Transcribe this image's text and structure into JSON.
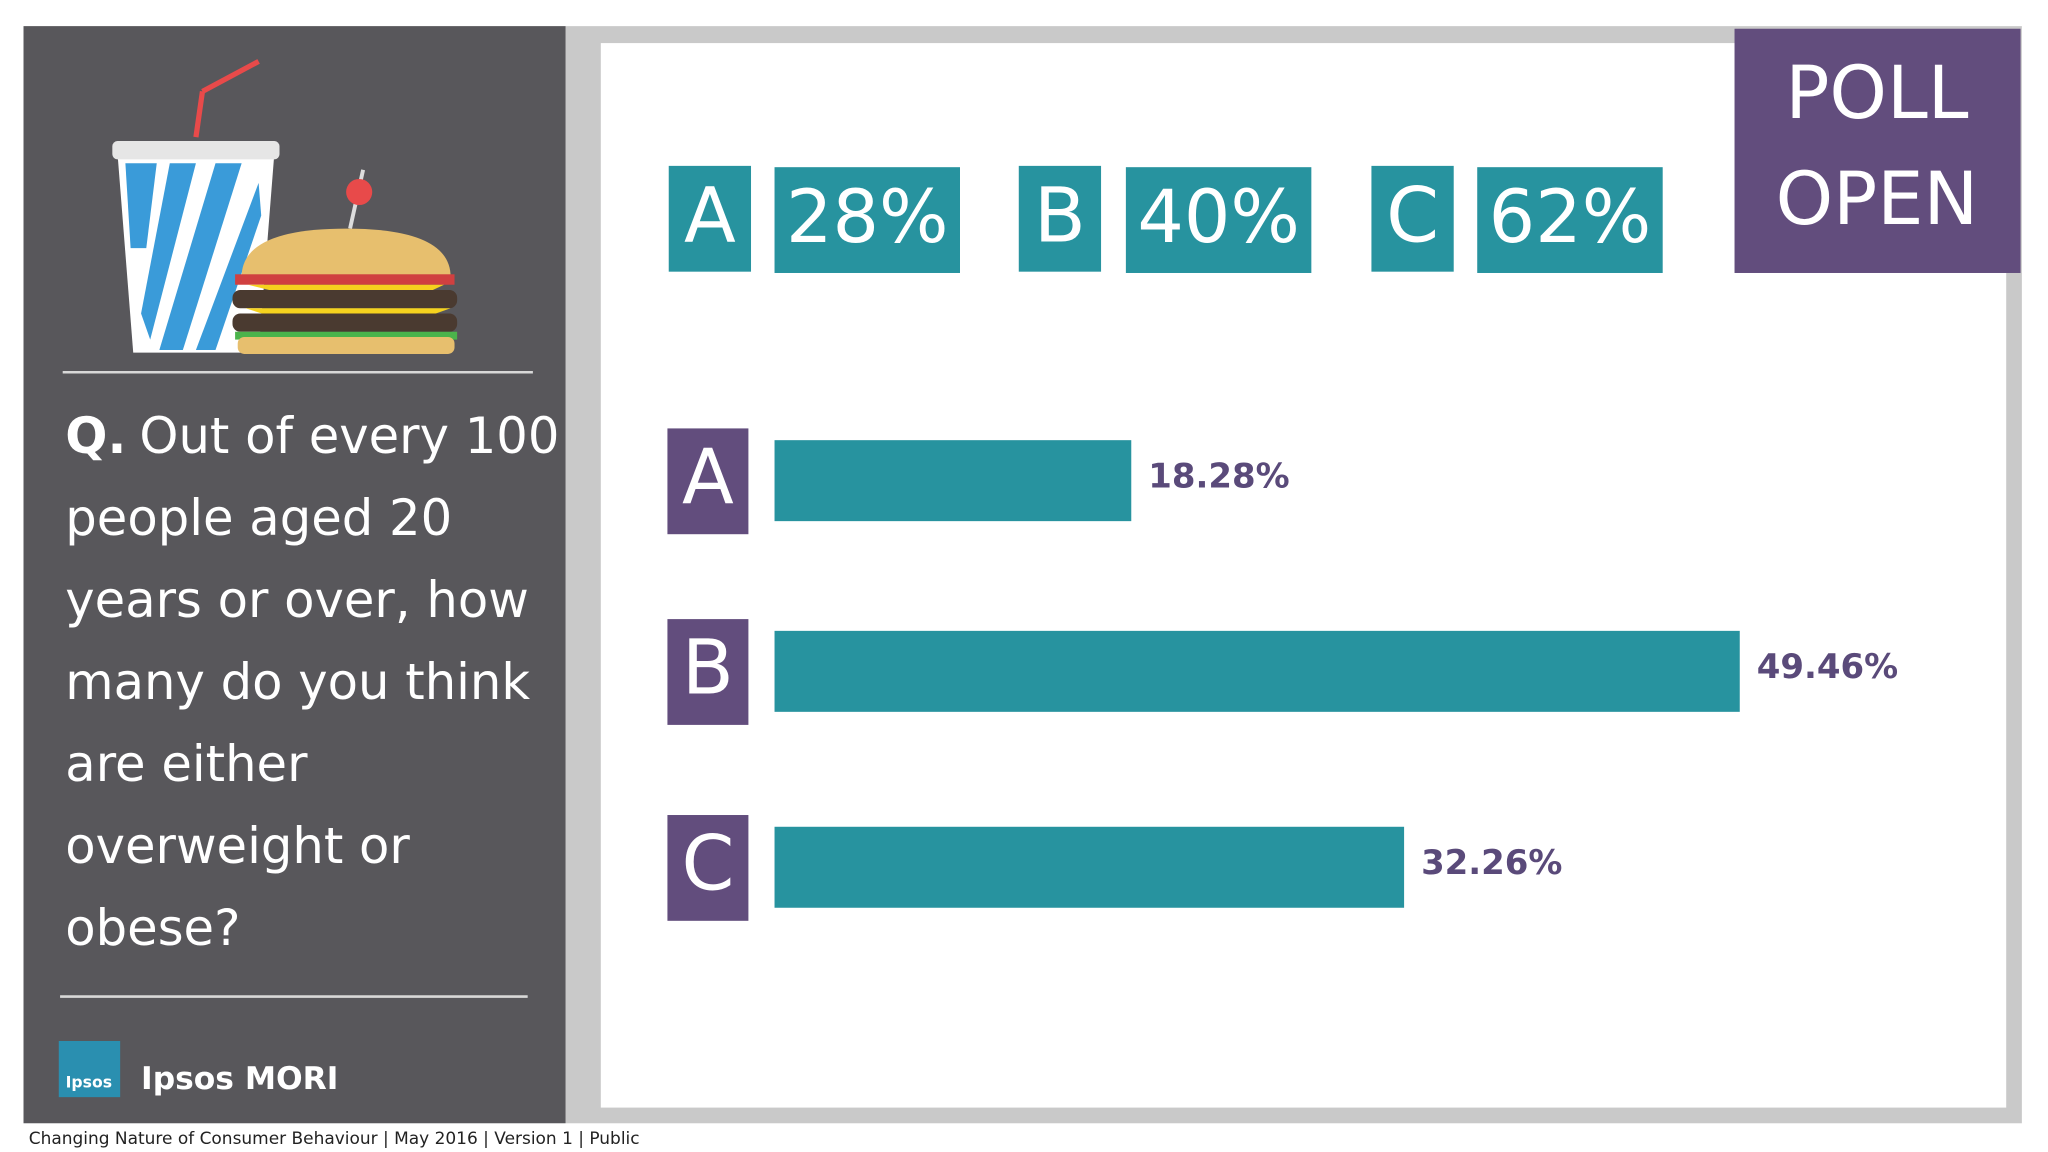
{
  "chart_data": {
    "type": "bar",
    "orientation": "horizontal",
    "categories": [
      "A",
      "B",
      "C"
    ],
    "values": [
      18.28,
      49.46,
      32.26
    ],
    "value_labels": [
      "18.28%",
      "49.46%",
      "32.26%"
    ],
    "color": "#27939f",
    "category_color": "#624d7d",
    "label_color": "#5a4a7a"
  },
  "answers": [
    {
      "letter": "A",
      "text": "28%"
    },
    {
      "letter": "B",
      "text": "40%"
    },
    {
      "letter": "C",
      "text": "62%"
    }
  ],
  "status": [
    "POLL",
    "OPEN"
  ],
  "question": {
    "prefix": "Q.",
    "lines": [
      "Out of every 100",
      "people aged 20",
      "years or over, how",
      "many do you think",
      "are either",
      "overweight or",
      "obese?"
    ]
  },
  "logo": {
    "icon_text": "Ipsos",
    "name": "Ipsos MORI"
  },
  "footer": "Changing Nature of Consumer Behaviour |  May 2016 |  Version 1  |  Public"
}
